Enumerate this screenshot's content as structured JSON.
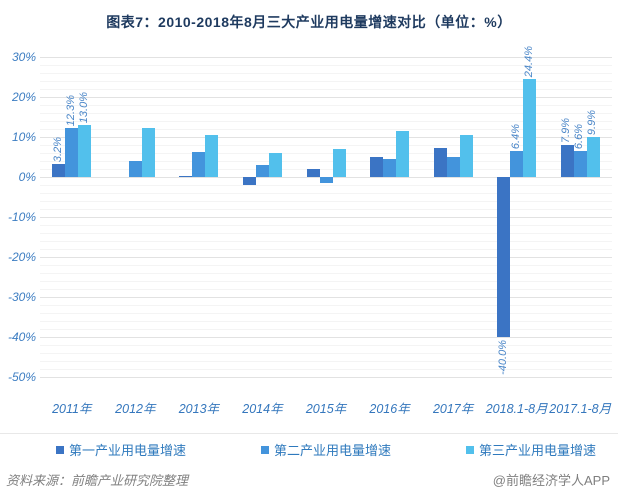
{
  "title": "图表7：2010-2018年8月三大产业用电量增速对比（单位：%）",
  "chart_data": {
    "type": "bar",
    "title": "图表7：2010-2018年8月三大产业用电量增速对比（单位：%）",
    "unit": "%",
    "categories": [
      "2011年",
      "2012年",
      "2013年",
      "2014年",
      "2015年",
      "2016年",
      "2017年",
      "2018.1-8月",
      "2017.1-8月"
    ],
    "series": [
      {
        "name": "第一产业用电量增速",
        "color": "#3b74c4",
        "values": [
          3.2,
          0.0,
          0.3,
          -2.0,
          2.0,
          5.0,
          7.3,
          -40.0,
          7.9
        ]
      },
      {
        "name": "第二产业用电量增速",
        "color": "#4394dc",
        "values": [
          12.3,
          3.9,
          6.2,
          3.0,
          -1.4,
          4.5,
          5.0,
          6.4,
          6.6
        ]
      },
      {
        "name": "第三产业用电量增速",
        "color": "#52c0ec",
        "values": [
          13.0,
          12.2,
          10.4,
          6.0,
          7.0,
          11.4,
          10.5,
          24.4,
          9.9
        ]
      }
    ],
    "data_labels": [
      [
        "3.2%",
        "",
        "",
        "",
        "",
        "",
        "",
        "-40.0%",
        "7.9%"
      ],
      [
        "12.3%",
        "",
        "",
        "",
        "",
        "",
        "",
        "6.4%",
        "6.6%"
      ],
      [
        "13.0%",
        "",
        "",
        "",
        "",
        "",
        "",
        "24.4%",
        "9.9%"
      ]
    ],
    "ylim": [
      -50,
      30
    ],
    "ytick_labels": [
      "30%",
      "20%",
      "10%",
      "0%",
      "-10%",
      "-20%",
      "-30%",
      "-40%",
      "-50%"
    ],
    "ytick_values": [
      30,
      20,
      10,
      0,
      -10,
      -20,
      -30,
      -40,
      -50
    ],
    "minor_grid_step": 2,
    "major_grid_step": 10,
    "grid": "on",
    "legend_position": "bottom"
  },
  "colors": {
    "title_text": "#1e3a5f",
    "axis_text": "#3c7dc2",
    "legend_text": "#2e79bd",
    "footer_text": "#808080",
    "grid_major": "#e2e2e2",
    "grid_minor": "#f4f4f4"
  },
  "footer": {
    "source": "资料来源：前瞻产业研究院整理",
    "watermark": "@前瞻经济学人APP"
  }
}
